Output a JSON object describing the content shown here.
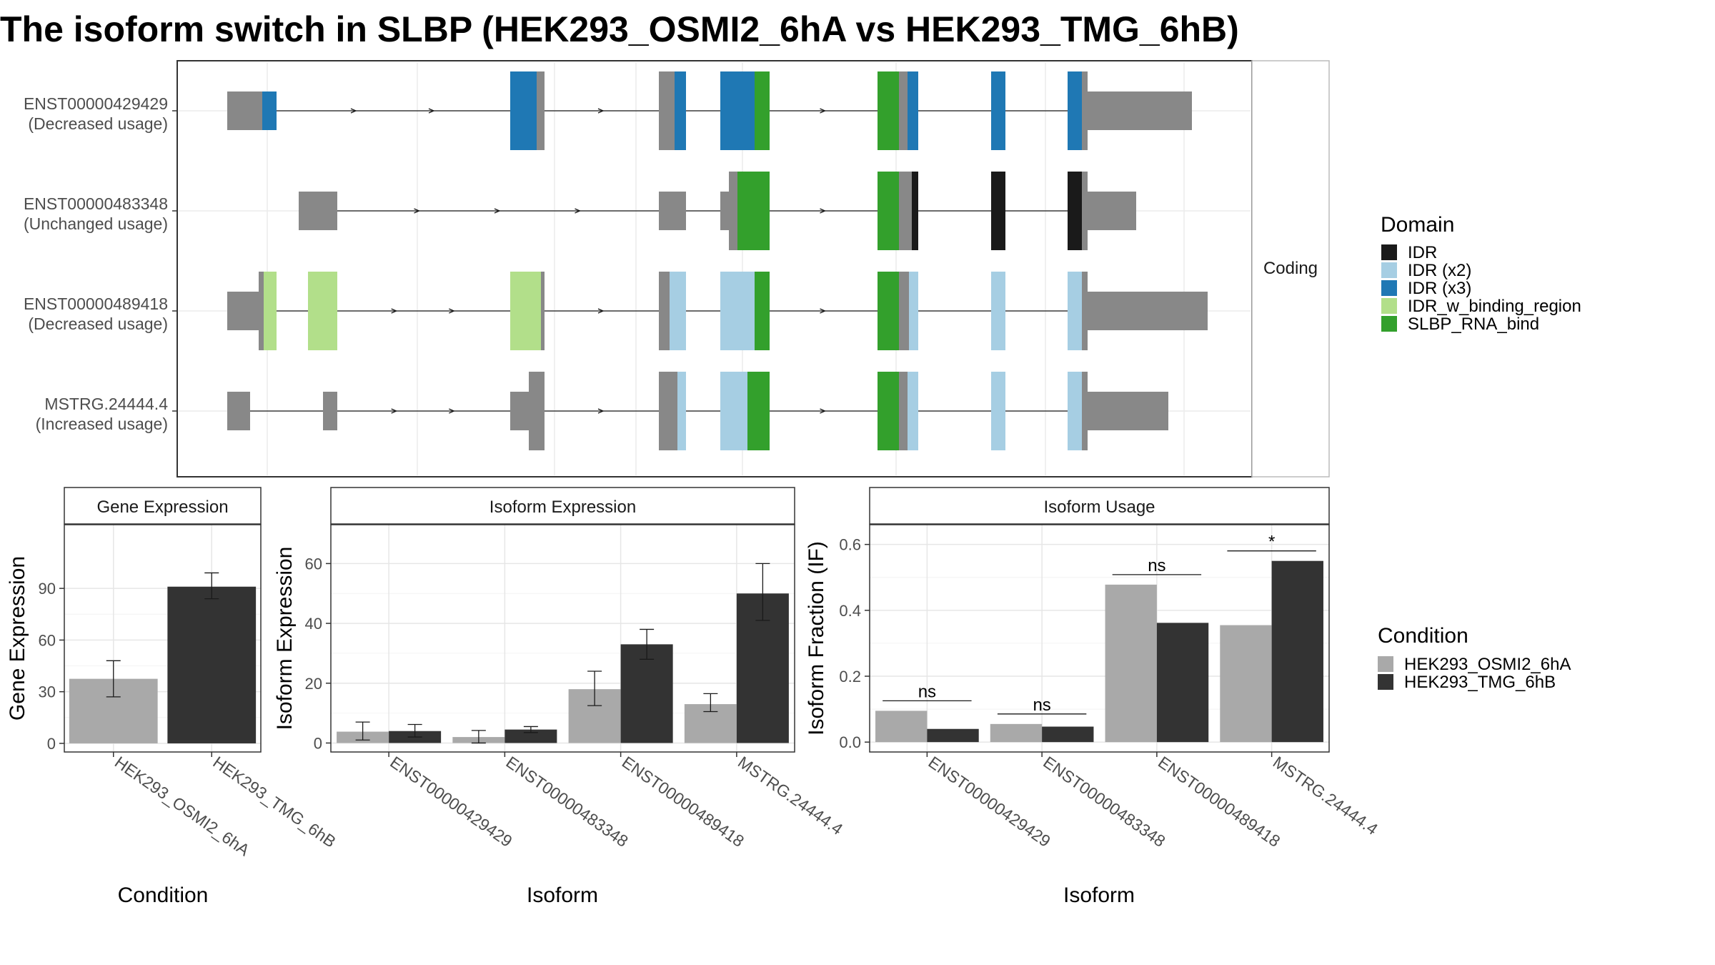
{
  "title": "The isoform switch in SLBP (HEK293_OSMI2_6hA vs HEK293_TMG_6hB)",
  "structure_panel": {
    "facet_label": "Coding",
    "isoforms": [
      {
        "id": "ENST00000429429",
        "usage": "(Decreased usage)"
      },
      {
        "id": "ENST00000483348",
        "usage": "(Unchanged usage)"
      },
      {
        "id": "ENST00000489418",
        "usage": "(Decreased usage)"
      },
      {
        "id": "MSTRG.24444.4",
        "usage": "(Increased usage)"
      }
    ]
  },
  "domain_legend": {
    "title": "Domain",
    "items": [
      {
        "label": "IDR",
        "color": "#1a1a1a"
      },
      {
        "label": "IDR (x2)",
        "color": "#a6cee3"
      },
      {
        "label": "IDR (x3)",
        "color": "#1f78b4"
      },
      {
        "label": "IDR_w_binding_region",
        "color": "#b2df8a"
      },
      {
        "label": "SLBP_RNA_bind",
        "color": "#33a02c"
      }
    ]
  },
  "condition_legend": {
    "title": "Condition",
    "items": [
      {
        "label": "HEK293_OSMI2_6hA",
        "color": "#a9a9a9"
      },
      {
        "label": "HEK293_TMG_6hB",
        "color": "#333333"
      }
    ]
  },
  "chart_data": [
    {
      "type": "bar",
      "panel_title": "Gene Expression",
      "xlabel": "Condition",
      "ylabel": "Gene Expression",
      "categories": [
        "HEK293_OSMI2_6hA",
        "HEK293_TMG_6hB"
      ],
      "values": [
        37.5,
        91
      ],
      "error_low": [
        27,
        84
      ],
      "error_high": [
        48,
        99
      ],
      "colors": [
        "#a9a9a9",
        "#333333"
      ],
      "ylim": [
        -5,
        127
      ],
      "yticks": [
        0,
        30,
        60,
        90
      ]
    },
    {
      "type": "bar",
      "panel_title": "Isoform Expression",
      "xlabel": "Isoform",
      "ylabel": "Isoform Expression",
      "categories": [
        "ENST00000429429",
        "ENST00000483348",
        "ENST00000489418",
        "MSTRG.24444.4"
      ],
      "series": [
        {
          "name": "HEK293_OSMI2_6hA",
          "values": [
            3.8,
            2.0,
            18,
            13
          ],
          "error_low": [
            1,
            0,
            12.5,
            10.5
          ],
          "error_high": [
            7,
            4.2,
            24,
            16.5
          ]
        },
        {
          "name": "HEK293_TMG_6hB",
          "values": [
            4.0,
            4.5,
            33,
            50
          ],
          "error_low": [
            2,
            3.5,
            28,
            41
          ],
          "error_high": [
            6.2,
            5.5,
            38,
            60
          ]
        }
      ],
      "ylim": [
        -3,
        73
      ],
      "yticks": [
        0,
        20,
        40,
        60
      ]
    },
    {
      "type": "bar",
      "panel_title": "Isoform Usage",
      "xlabel": "Isoform",
      "ylabel": "Isoform Fraction (IF)",
      "categories": [
        "ENST00000429429",
        "ENST00000483348",
        "ENST00000489418",
        "MSTRG.24444.4"
      ],
      "series": [
        {
          "name": "HEK293_OSMI2_6hA",
          "values": [
            0.095,
            0.055,
            0.478,
            0.355
          ]
        },
        {
          "name": "HEK293_TMG_6hB",
          "values": [
            0.04,
            0.047,
            0.362,
            0.55
          ]
        }
      ],
      "significance": [
        "ns",
        "ns",
        "ns",
        "*"
      ],
      "ylim": [
        -0.03,
        0.66
      ],
      "yticks": [
        "0.0",
        "0.2",
        "0.4",
        "0.6"
      ]
    }
  ]
}
